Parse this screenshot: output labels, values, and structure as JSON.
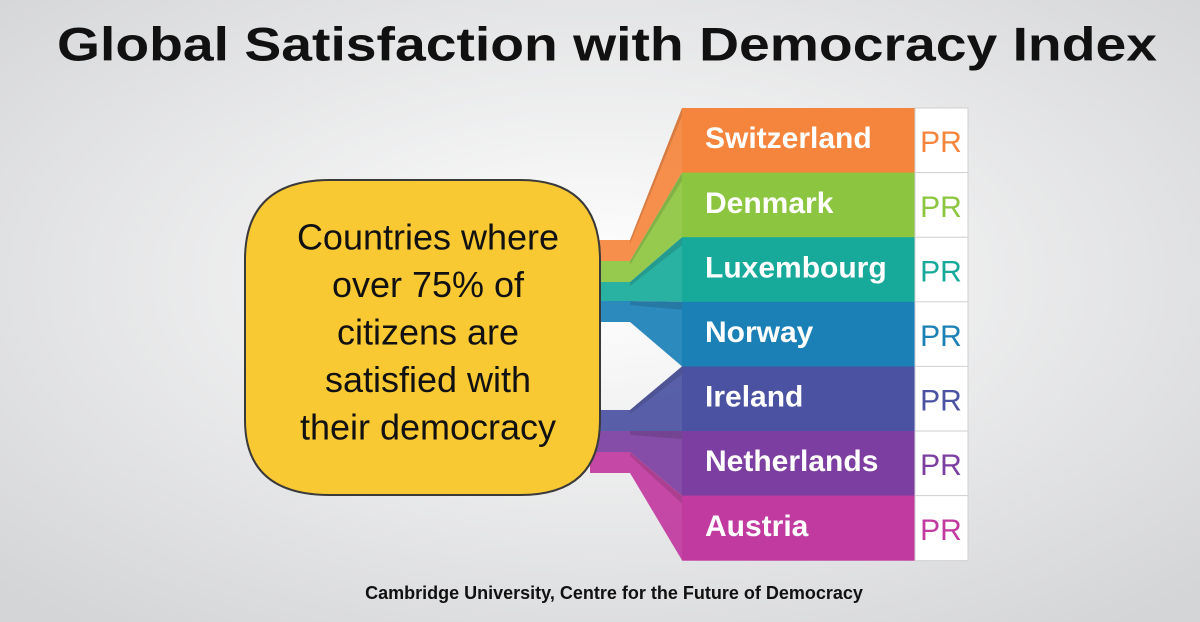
{
  "title": "Global Satisfaction with Democracy Index",
  "bubble": {
    "lines": [
      "Countries where",
      "over 75% of",
      "citizens are",
      "satisfied with",
      "their democracy"
    ]
  },
  "countries": [
    {
      "name": "Switzerland",
      "tag": "PR",
      "color": "#f5843d"
    },
    {
      "name": "Denmark",
      "tag": "PR",
      "color": "#8cc540"
    },
    {
      "name": "Luxembourg",
      "tag": "PR",
      "color": "#17aa9a"
    },
    {
      "name": "Norway",
      "tag": "PR",
      "color": "#1a80b6"
    },
    {
      "name": "Ireland",
      "tag": "PR",
      "color": "#4b52a2"
    },
    {
      "name": "Netherlands",
      "tag": "PR",
      "color": "#7c3fa1"
    },
    {
      "name": "Austria",
      "tag": "PR",
      "color": "#c13aa0"
    }
  ],
  "footer": "Cambridge University, Centre for the Future of Democracy"
}
